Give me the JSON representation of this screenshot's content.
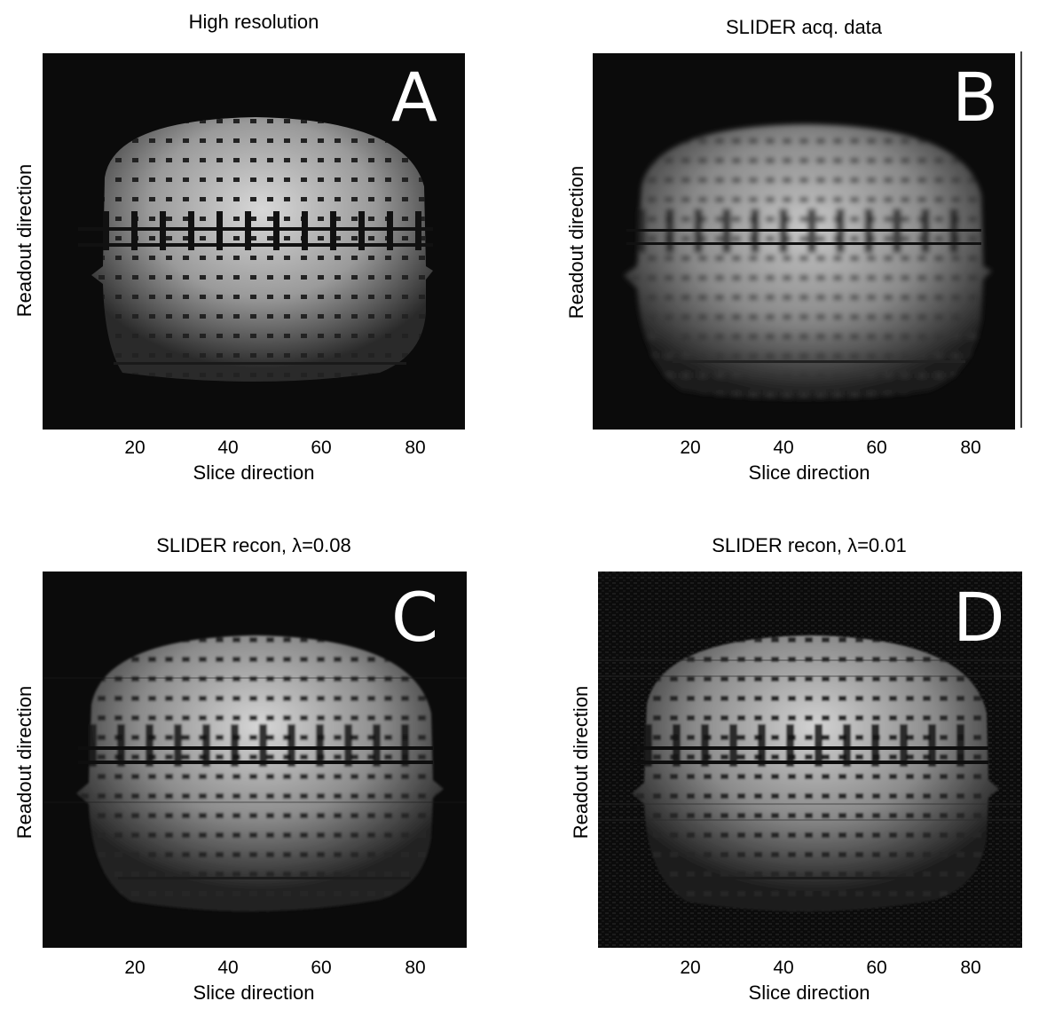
{
  "panels": [
    {
      "id": "A",
      "title": "High resolution",
      "letter": "A",
      "xlabel": "Slice direction",
      "ylabel": "Readout direction",
      "xticks": [
        "20",
        "40",
        "60",
        "80"
      ]
    },
    {
      "id": "B",
      "title": "SLIDER acq. data",
      "letter": "B",
      "xlabel": "Slice direction",
      "ylabel": "Readout direction",
      "xticks": [
        "20",
        "40",
        "60",
        "80"
      ]
    },
    {
      "id": "C",
      "title": "SLIDER recon, λ=0.08",
      "letter": "C",
      "xlabel": "Slice direction",
      "ylabel": "Readout direction",
      "xticks": [
        "20",
        "40",
        "60",
        "80"
      ]
    },
    {
      "id": "D",
      "title": "SLIDER recon, λ=0.01",
      "letter": "D",
      "xlabel": "Slice direction",
      "ylabel": "Readout direction",
      "xticks": [
        "20",
        "40",
        "60",
        "80"
      ]
    }
  ]
}
